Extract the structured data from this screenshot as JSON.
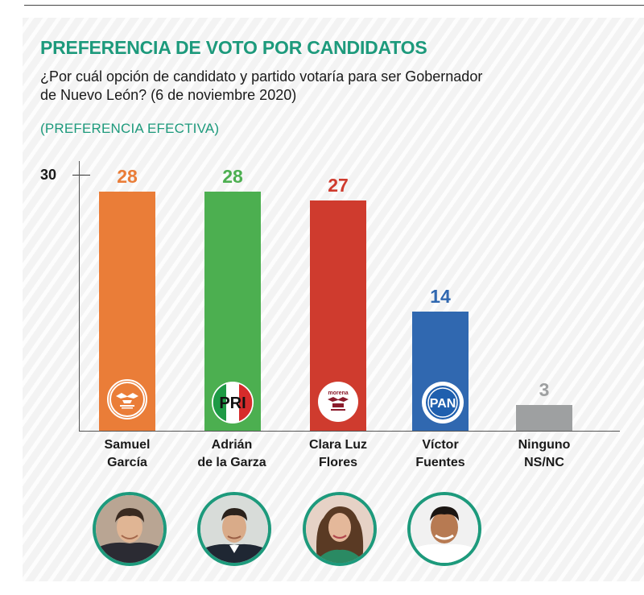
{
  "title": "PREFERENCIA DE VOTO POR CANDIDATOS",
  "question": "¿Por cuál opción de candidato y partido votaría para ser Gobernador de Nuevo León? (6 de noviembre 2020)",
  "subtitle": "(PREFERENCIA EFECTIVA)",
  "axis": {
    "tick_label": "30"
  },
  "party_logos": {
    "mc": "eagle-icon",
    "pri": "PRI",
    "morena": "morena",
    "pan": "PAN"
  },
  "candidates": [
    {
      "name_line1": "Samuel",
      "name_line2": "García"
    },
    {
      "name_line1": "Adrián",
      "name_line2": "de la Garza"
    },
    {
      "name_line1": "Clara Luz",
      "name_line2": "Flores"
    },
    {
      "name_line1": "Víctor",
      "name_line2": "Fuentes"
    },
    {
      "name_line1": "Ninguno",
      "name_line2": "NS/NC"
    }
  ],
  "chart_data": {
    "type": "bar",
    "title": "PREFERENCIA DE VOTO POR CANDIDATOS",
    "subtitle": "(PREFERENCIA EFECTIVA)",
    "categories": [
      "Samuel García",
      "Adrián de la Garza",
      "Clara Luz Flores",
      "Víctor Fuentes",
      "Ninguno NS/NC"
    ],
    "values": [
      28,
      28,
      27,
      14,
      3
    ],
    "colors": [
      "#ea7d38",
      "#4caf50",
      "#cf3b2e",
      "#3068b0",
      "#9ea0a1"
    ],
    "value_label_colors": [
      "#ea7d38",
      "#4caf50",
      "#cf3b2e",
      "#3068b0",
      "#9ea0a1"
    ],
    "ylim": [
      0,
      30
    ],
    "yticks": [
      30
    ],
    "grid": false,
    "legend": "none"
  }
}
